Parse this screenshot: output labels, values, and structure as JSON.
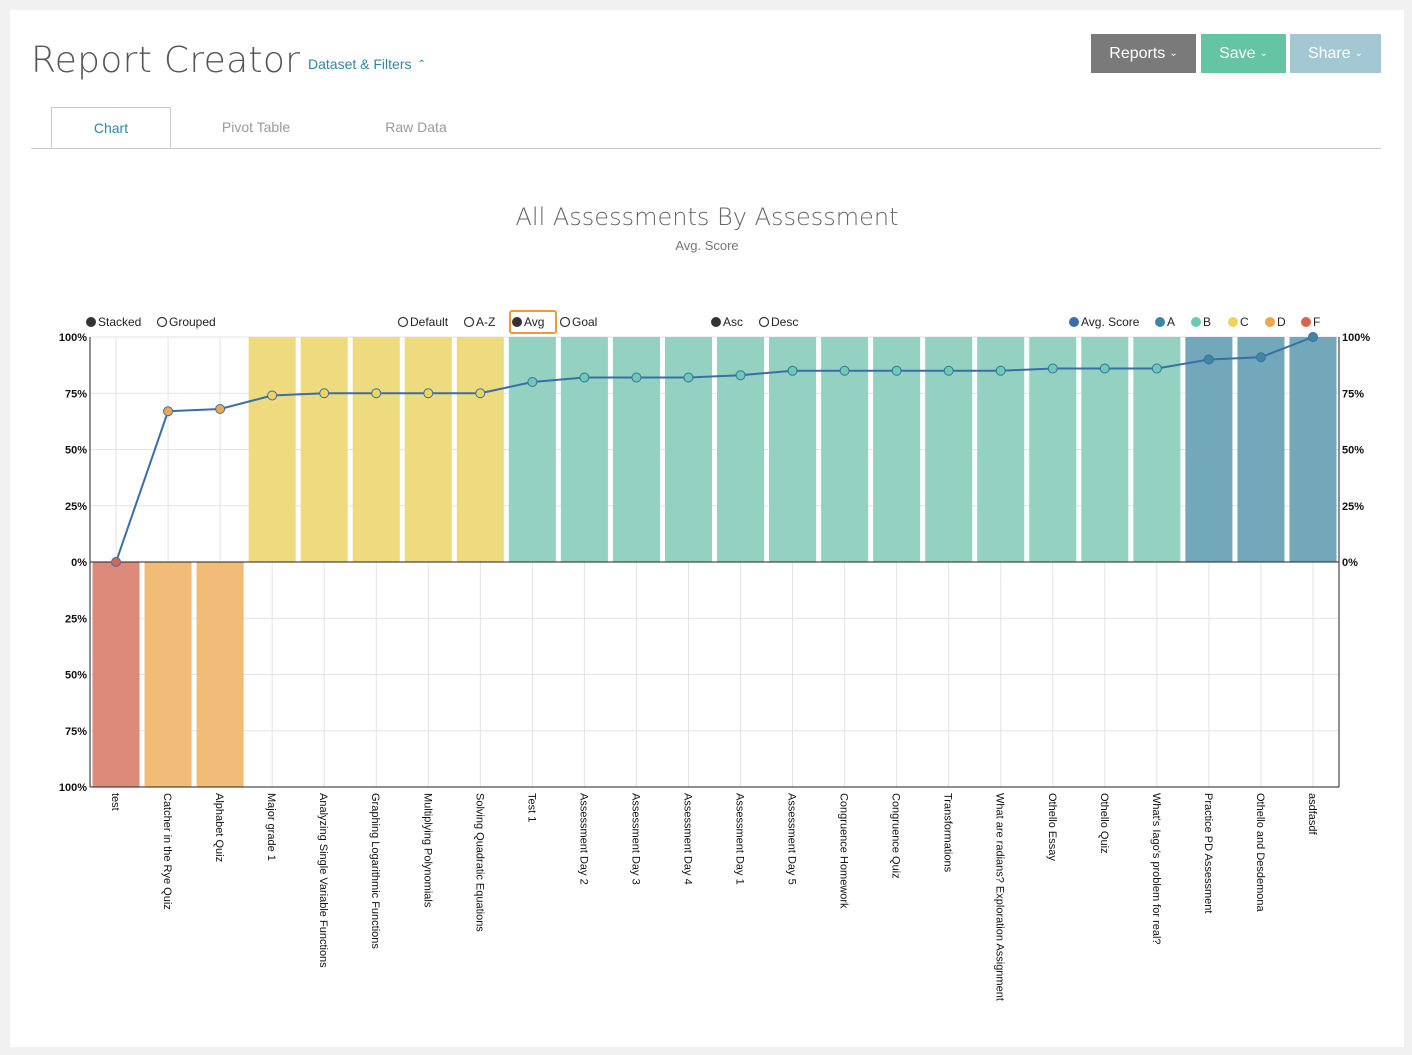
{
  "header": {
    "title": "Report Creator",
    "dataset_link": "Dataset & Filters",
    "buttons": {
      "reports": "Reports",
      "save": "Save",
      "share": "Share"
    }
  },
  "tabs": [
    "Chart",
    "Pivot Table",
    "Raw Data"
  ],
  "active_tab": 0,
  "controls": {
    "layout": [
      {
        "label": "Stacked",
        "selected": true
      },
      {
        "label": "Grouped",
        "selected": false
      }
    ],
    "sort_by": [
      {
        "label": "Default",
        "selected": false
      },
      {
        "label": "A-Z",
        "selected": false
      },
      {
        "label": "Avg",
        "selected": true
      },
      {
        "label": "Goal",
        "selected": false
      }
    ],
    "order": [
      {
        "label": "Asc",
        "selected": true
      },
      {
        "label": "Desc",
        "selected": false
      }
    ]
  },
  "legend": [
    {
      "label": "Avg. Score",
      "color": "#3a6ea8"
    },
    {
      "label": "A",
      "color": "#3f87a0"
    },
    {
      "label": "B",
      "color": "#6ccbb1"
    },
    {
      "label": "C",
      "color": "#eed35f"
    },
    {
      "label": "D",
      "color": "#eba851"
    },
    {
      "label": "F",
      "color": "#d9644e"
    }
  ],
  "grade_colors": {
    "A": "#72a8ba",
    "B": "#94d1c1",
    "C": "#eedb80",
    "D": "#f1bc78",
    "F": "#de8a7a"
  },
  "chart_data": {
    "type": "bar",
    "title": "All Assessments By Assessment",
    "subtitle": "Avg. Score",
    "yticks_upper": [
      "100%",
      "75%",
      "50%",
      "25%",
      "0%"
    ],
    "yticks_lower": [
      "25%",
      "50%",
      "75%",
      "100%"
    ],
    "ylim": [
      0,
      100
    ],
    "categories": [
      "test",
      "Catcher in the Rye Quiz",
      "Alphabet Quiz",
      "Major grade 1",
      "Analyzing Single Variable Functions",
      "Graphing Logarithmic Functions",
      "Multiplying Polynomials",
      "Solving Quadratic Equations",
      "Test 1",
      "Assessment Day 2",
      "Assessment Day 3",
      "Assessment Day 4",
      "Assessment Day 1",
      "Assessment Day 5",
      "Congruence Homework",
      "Congruence Quiz",
      "Transformations",
      "What are radians? Exploration Assignment",
      "Othello Essay",
      "Othello Quiz",
      "What's Iago's problem for real?",
      "Practice PD Assessment",
      "Othello and Desdemona",
      "asdfasdf"
    ],
    "grades": [
      "F",
      "D",
      "D",
      "C",
      "C",
      "C",
      "C",
      "C",
      "B",
      "B",
      "B",
      "B",
      "B",
      "B",
      "B",
      "B",
      "B",
      "B",
      "B",
      "B",
      "B",
      "A",
      "A",
      "A"
    ],
    "series": [
      {
        "name": "Avg. Score",
        "values": [
          0,
          67,
          68,
          74,
          75,
          75,
          75,
          75,
          80,
          82,
          82,
          82,
          83,
          85,
          85,
          85,
          85,
          85,
          86,
          86,
          86,
          90,
          91,
          100
        ]
      }
    ]
  }
}
